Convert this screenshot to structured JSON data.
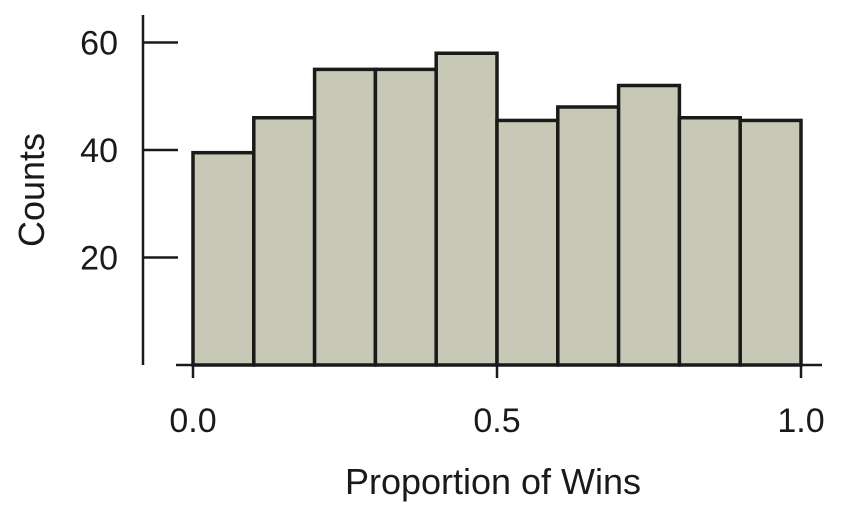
{
  "chart_data": {
    "type": "bar",
    "subtype": "histogram",
    "title": "",
    "xlabel": "Proportion of Wins",
    "ylabel": "Counts",
    "bin_edges": [
      0.0,
      0.1,
      0.2,
      0.3,
      0.4,
      0.5,
      0.6,
      0.7,
      0.8,
      0.9,
      1.0
    ],
    "values": [
      39.5,
      46,
      55,
      55,
      58,
      45.5,
      48,
      52,
      46,
      45.5
    ],
    "xticks": [
      0.0,
      0.5,
      1.0
    ],
    "xtick_labels": [
      "0.0",
      "0.5",
      "1.0"
    ],
    "yticks": [
      20,
      40,
      60
    ],
    "ytick_labels": [
      "20",
      "40",
      "60"
    ],
    "xlim": [
      0.0,
      1.0
    ],
    "ylim": [
      0,
      60
    ],
    "grid": false,
    "legend": false,
    "colors": {
      "bar_fill": "#c8c8b6",
      "bar_edge": "#1a1a1a"
    }
  }
}
